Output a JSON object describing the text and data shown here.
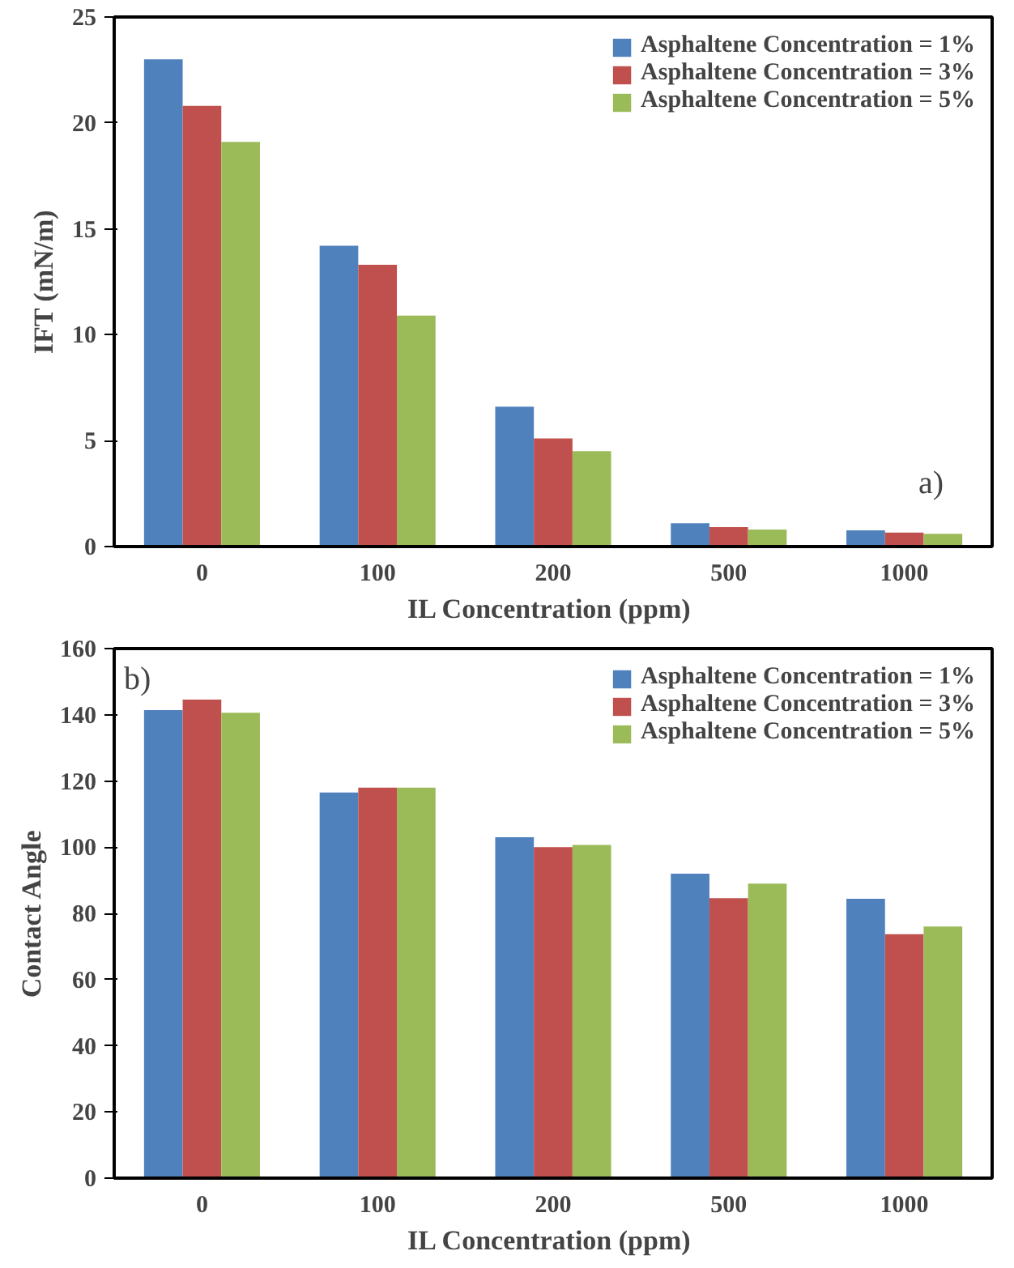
{
  "chart_data": [
    {
      "type": "bar",
      "categories": [
        "0",
        "100",
        "200",
        "500",
        "1000"
      ],
      "xlabel": "IL Concentration  (ppm)",
      "ylabel": "IFT (mN/m)",
      "ylim": [
        0,
        25
      ],
      "yticks": [
        0,
        5,
        10,
        15,
        20,
        25
      ],
      "grid": false,
      "legend": "top right",
      "annotations": [
        "a)"
      ],
      "series": [
        {
          "name": "Asphaltene Concentration = 1%",
          "color": "#4f81bd",
          "values": [
            23.0,
            14.2,
            6.6,
            1.1,
            0.76
          ]
        },
        {
          "name": "Asphaltene Concentration = 3%",
          "color": "#c0504d",
          "values": [
            20.8,
            13.3,
            5.1,
            0.92,
            0.66
          ]
        },
        {
          "name": "Asphaltene Concentration = 5%",
          "color": "#9bbb59",
          "values": [
            19.1,
            10.9,
            4.5,
            0.8,
            0.6
          ]
        }
      ]
    },
    {
      "type": "bar",
      "categories": [
        "0",
        "100",
        "200",
        "500",
        "1000"
      ],
      "xlabel": "IL Concentration  (ppm)",
      "ylabel": "Contact Angle",
      "ylim": [
        0,
        160
      ],
      "yticks": [
        0,
        20,
        40,
        60,
        80,
        100,
        120,
        140,
        160
      ],
      "grid": false,
      "legend": "top right",
      "annotations": [
        "b)"
      ],
      "series": [
        {
          "name": "Asphaltene Concentration = 1%",
          "color": "#4f81bd",
          "values": [
            141.4,
            116.5,
            103,
            92,
            84.4
          ]
        },
        {
          "name": "Asphaltene Concentration = 3%",
          "color": "#c0504d",
          "values": [
            144.6,
            118,
            100,
            84.6,
            73.7
          ]
        },
        {
          "name": "Asphaltene Concentration = 5%",
          "color": "#9bbb59",
          "values": [
            140.6,
            118,
            100.7,
            89,
            76
          ]
        }
      ]
    }
  ]
}
